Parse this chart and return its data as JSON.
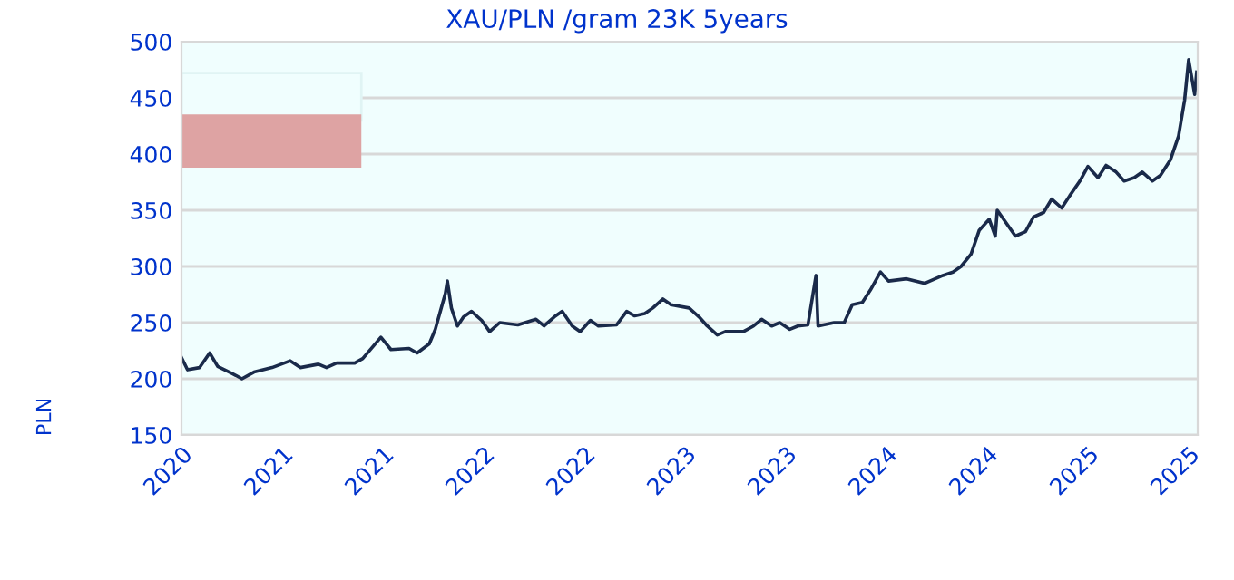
{
  "chart_data": {
    "type": "line",
    "title": "XAU/PLN /gram 23K 5years",
    "ylabel": "PLN",
    "x": [
      2020.17,
      2020.2,
      2020.26,
      2020.31,
      2020.35,
      2020.44,
      2020.47,
      2020.53,
      2020.62,
      2020.71,
      2020.76,
      2020.85,
      2020.89,
      2020.94,
      2021.03,
      2021.07,
      2021.16,
      2021.21,
      2021.3,
      2021.34,
      2021.4,
      2021.43,
      2021.48,
      2021.49,
      2021.51,
      2021.54,
      2021.57,
      2021.61,
      2021.66,
      2021.7,
      2021.75,
      2021.84,
      2021.93,
      2021.97,
      2022.02,
      2022.06,
      2022.11,
      2022.15,
      2022.2,
      2022.24,
      2022.33,
      2022.38,
      2022.42,
      2022.47,
      2022.51,
      2022.56,
      2022.6,
      2022.69,
      2022.74,
      2022.78,
      2022.83,
      2022.87,
      2022.96,
      2023.01,
      2023.05,
      2023.1,
      2023.14,
      2023.19,
      2023.23,
      2023.28,
      2023.32,
      2023.33,
      2023.41,
      2023.46,
      2023.5,
      2023.55,
      2023.59,
      2023.64,
      2023.68,
      2023.77,
      2023.86,
      2023.95,
      2024.0,
      2024.04,
      2024.09,
      2024.13,
      2024.18,
      2024.21,
      2024.22,
      2024.31,
      2024.36,
      2024.4,
      2024.45,
      2024.49,
      2024.54,
      2024.58,
      2024.63,
      2024.67,
      2024.72,
      2024.76,
      2024.81,
      2024.85,
      2024.9,
      2024.94,
      2024.99,
      2025.03,
      2025.08,
      2025.12,
      2025.15,
      2025.17,
      2025.2,
      2025.21
    ],
    "series": [
      {
        "color": "#1a2a4a",
        "values": [
          219,
          208,
          210,
          223,
          211,
          203,
          200,
          206,
          210,
          216,
          210,
          213,
          210,
          214,
          214,
          218,
          237,
          226,
          227,
          223,
          231,
          244,
          276,
          287,
          263,
          247,
          255,
          260,
          252,
          242,
          250,
          248,
          253,
          247,
          255,
          260,
          247,
          242,
          252,
          247,
          248,
          260,
          256,
          258,
          263,
          271,
          266,
          263,
          255,
          247,
          239,
          242,
          242,
          247,
          253,
          247,
          250,
          244,
          247,
          248,
          292,
          247,
          250,
          250,
          266,
          268,
          279,
          295,
          287,
          289,
          285,
          292,
          295,
          300,
          311,
          332,
          342,
          327,
          350,
          327,
          331,
          344,
          348,
          360,
          352,
          363,
          376,
          389,
          379,
          390,
          384,
          376,
          379,
          384,
          376,
          381,
          395,
          416,
          448,
          484,
          453,
          473
        ]
      }
    ],
    "xlim": [
      2020.17,
      2025.215
    ],
    "xticks": [
      {
        "value": 2020.17,
        "label": "2020"
      },
      {
        "value": 2020.67,
        "label": "2021"
      },
      {
        "value": 2021.17,
        "label": "2021"
      },
      {
        "value": 2021.67,
        "label": "2022"
      },
      {
        "value": 2022.17,
        "label": "2022"
      },
      {
        "value": 2022.67,
        "label": "2023"
      },
      {
        "value": 2023.17,
        "label": "2023"
      },
      {
        "value": 2023.67,
        "label": "2024"
      },
      {
        "value": 2024.17,
        "label": "2024"
      },
      {
        "value": 2024.67,
        "label": "2025"
      },
      {
        "value": 2025.17,
        "label": "2025"
      }
    ],
    "ylim": [
      150,
      500
    ],
    "yticks": [
      150,
      200,
      250,
      300,
      350,
      400,
      450,
      500
    ],
    "grid": "y",
    "line_style": "solid",
    "marker": "none"
  }
}
